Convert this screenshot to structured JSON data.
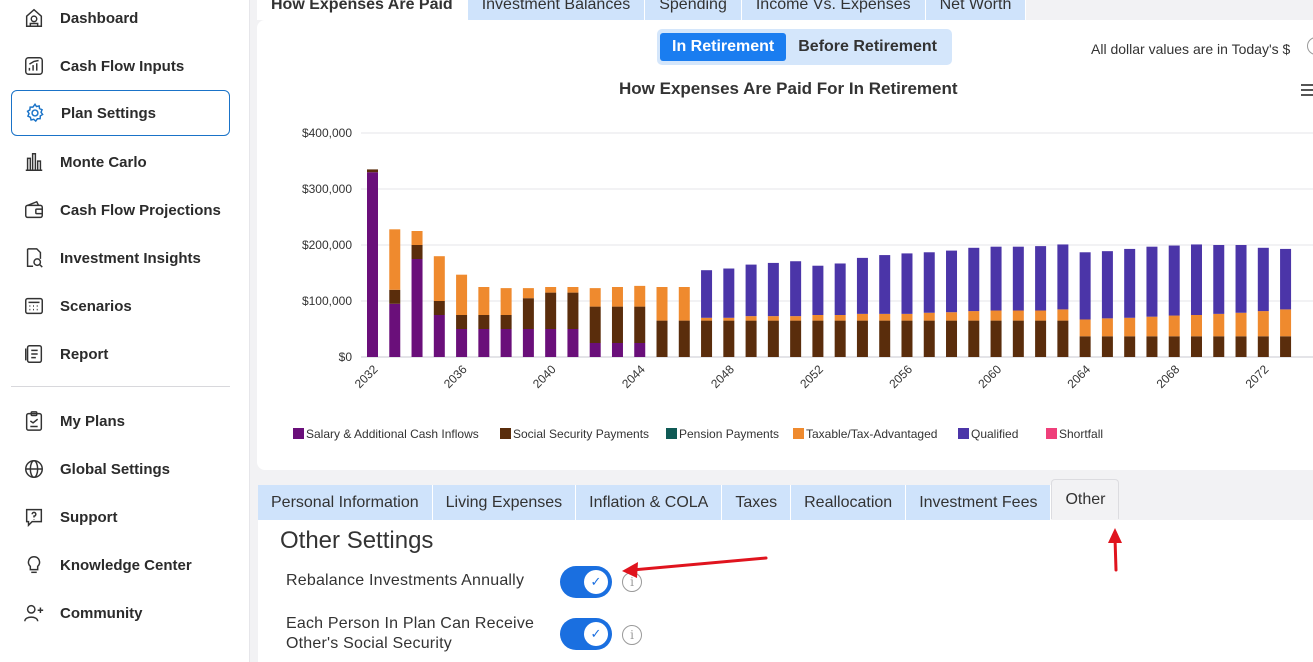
{
  "sidebar": {
    "items": [
      {
        "label": "Dashboard",
        "icon": "dashboard-icon"
      },
      {
        "label": "Cash Flow Inputs",
        "icon": "cash-flow-inputs-icon"
      },
      {
        "label": "Plan Settings",
        "icon": "gear-icon",
        "active": true
      },
      {
        "label": "Monte Carlo",
        "icon": "bar-chart-icon"
      },
      {
        "label": "Cash Flow Projections",
        "icon": "wallet-icon"
      },
      {
        "label": "Investment Insights",
        "icon": "document-search-icon"
      },
      {
        "label": "Scenarios",
        "icon": "calculator-icon"
      },
      {
        "label": "Report",
        "icon": "report-icon"
      }
    ],
    "secondary": [
      {
        "label": "My Plans",
        "icon": "clipboard-icon"
      },
      {
        "label": "Global Settings",
        "icon": "globe-icon"
      },
      {
        "label": "Support",
        "icon": "help-chat-icon"
      },
      {
        "label": "Knowledge Center",
        "icon": "lightbulb-icon"
      },
      {
        "label": "Community",
        "icon": "add-user-icon"
      }
    ]
  },
  "top_tabs": [
    "How Expenses Are Paid",
    "Investment Balances",
    "Spending",
    "Income Vs. Expenses",
    "Net Worth"
  ],
  "chart_panel": {
    "toggle": {
      "in_retirement": "In Retirement",
      "before_retirement": "Before Retirement"
    },
    "dollar_note": "All dollar values are in Today's $"
  },
  "chart_data": {
    "type": "bar",
    "stacked": true,
    "title": "How Expenses Are Paid For In Retirement",
    "ylim": [
      0,
      400000
    ],
    "yticks": [
      "$0",
      "$100,000",
      "$200,000",
      "$300,000",
      "$400,000"
    ],
    "xticks": [
      "2032",
      "2036",
      "2040",
      "2044",
      "2048",
      "2052",
      "2056",
      "2060",
      "2064",
      "2068",
      "2072"
    ],
    "categories": [
      2032,
      2033,
      2034,
      2035,
      2036,
      2037,
      2038,
      2039,
      2040,
      2041,
      2042,
      2043,
      2044,
      2045,
      2046,
      2047,
      2048,
      2049,
      2050,
      2051,
      2052,
      2053,
      2054,
      2055,
      2056,
      2057,
      2058,
      2059,
      2060,
      2061,
      2062,
      2063,
      2064,
      2065,
      2066,
      2067,
      2068,
      2069,
      2070,
      2071,
      2072,
      2073
    ],
    "series": [
      {
        "name": "Salary & Additional Cash Inflows",
        "color": "#6a0f7a",
        "values": [
          330000,
          95000,
          175000,
          75000,
          50000,
          50000,
          50000,
          50000,
          50000,
          50000,
          25000,
          25000,
          25000,
          0,
          0,
          0,
          0,
          0,
          0,
          0,
          0,
          0,
          0,
          0,
          0,
          0,
          0,
          0,
          0,
          0,
          0,
          0,
          0,
          0,
          0,
          0,
          0,
          0,
          0,
          0,
          0,
          0
        ]
      },
      {
        "name": "Social Security Payments",
        "color": "#5a2d0c",
        "values": [
          5000,
          25000,
          25000,
          25000,
          25000,
          25000,
          25000,
          55000,
          65000,
          65000,
          65000,
          65000,
          65000,
          65000,
          65000,
          65000,
          65000,
          65000,
          65000,
          65000,
          65000,
          65000,
          65000,
          65000,
          65000,
          65000,
          65000,
          65000,
          65000,
          65000,
          65000,
          65000,
          37000,
          37000,
          37000,
          37000,
          37000,
          37000,
          37000,
          37000,
          37000,
          37000
        ]
      },
      {
        "name": "Pension Payments",
        "color": "#0f5a55",
        "values": [
          0,
          0,
          0,
          0,
          0,
          0,
          0,
          0,
          0,
          0,
          0,
          0,
          0,
          0,
          0,
          0,
          0,
          0,
          0,
          0,
          0,
          0,
          0,
          0,
          0,
          0,
          0,
          0,
          0,
          0,
          0,
          0,
          0,
          0,
          0,
          0,
          0,
          0,
          0,
          0,
          0,
          0
        ]
      },
      {
        "name": "Taxable/Tax-Advantaged",
        "color": "#ef8a2e",
        "values": [
          0,
          108000,
          25000,
          80000,
          72000,
          50000,
          48000,
          18000,
          10000,
          10000,
          33000,
          35000,
          37000,
          60000,
          60000,
          5000,
          5000,
          8000,
          8000,
          8000,
          10000,
          10000,
          12000,
          12000,
          12000,
          14000,
          15000,
          17000,
          18000,
          18000,
          18000,
          20000,
          30000,
          32000,
          33000,
          35000,
          37000,
          38000,
          40000,
          42000,
          45000,
          48000
        ]
      },
      {
        "name": "Qualified",
        "color": "#4b35a8",
        "values": [
          0,
          0,
          0,
          0,
          0,
          0,
          0,
          0,
          0,
          0,
          0,
          0,
          0,
          0,
          0,
          85000,
          88000,
          92000,
          95000,
          98000,
          88000,
          92000,
          100000,
          105000,
          108000,
          108000,
          110000,
          113000,
          114000,
          114000,
          115000,
          116000,
          120000,
          120000,
          123000,
          125000,
          125000,
          126000,
          123000,
          121000,
          113000,
          108000
        ]
      },
      {
        "name": "Shortfall",
        "color": "#ef3f7a",
        "values": [
          0,
          0,
          0,
          0,
          0,
          0,
          0,
          0,
          0,
          0,
          0,
          0,
          0,
          0,
          0,
          0,
          0,
          0,
          0,
          0,
          0,
          0,
          0,
          0,
          0,
          0,
          0,
          0,
          0,
          0,
          0,
          0,
          0,
          0,
          0,
          0,
          0,
          0,
          0,
          0,
          0,
          0
        ]
      }
    ],
    "grid": true,
    "legend_position": "bottom-left"
  },
  "settings_tabs": [
    "Personal Information",
    "Living Expenses",
    "Inflation & COLA",
    "Taxes",
    "Reallocation",
    "Investment Fees",
    "Other"
  ],
  "other_settings": {
    "title": "Other Settings",
    "rebalance_label": "Rebalance Investments Annually",
    "social_security_label_line1": "Each Person In Plan Can Receive",
    "social_security_label_line2": "Other's Social Security",
    "info_glyph": "i",
    "check_glyph": "✓"
  }
}
